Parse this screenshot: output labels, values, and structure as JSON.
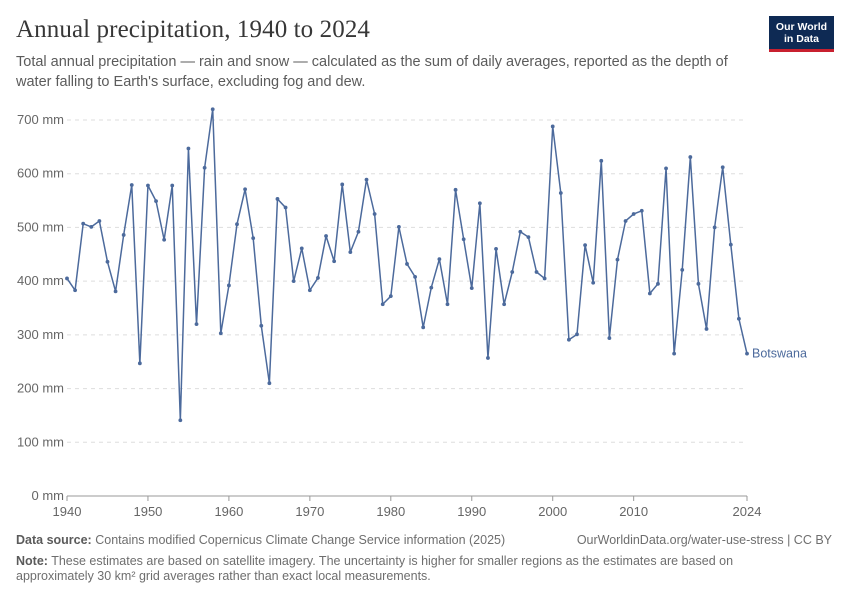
{
  "header": {
    "title": "Annual precipitation, 1940 to 2024",
    "subtitle": "Total annual precipitation — rain and snow — calculated as the sum of daily averages, reported as the depth of water falling to Earth's surface, excluding fog and dew."
  },
  "logo": {
    "line1": "Our World",
    "line2": "in Data"
  },
  "footer": {
    "source_label": "Data source:",
    "source_text": "Contains modified Copernicus Climate Change Service information (2025)",
    "url_text": "OurWorldinData.org/water-use-stress | CC BY",
    "note_label": "Note:",
    "note_text": "These estimates are based on satellite imagery. The uncertainty is higher for smaller regions as the estimates are based on approximately 30 km² grid averages rather than exact local measurements."
  },
  "colors": {
    "series": "#4c6a9c",
    "grid": "#dddddd",
    "axis": "#5b5b5b"
  },
  "chart_data": {
    "type": "line",
    "title": "Annual precipitation, 1940 to 2024",
    "xlabel": "",
    "ylabel": "",
    "xlim": [
      1940,
      2024
    ],
    "ylim": [
      0,
      720
    ],
    "y_ticks": [
      0,
      100,
      200,
      300,
      400,
      500,
      600,
      700
    ],
    "y_tick_labels": [
      "0 mm",
      "100 mm",
      "200 mm",
      "300 mm",
      "400 mm",
      "500 mm",
      "600 mm",
      "700 mm"
    ],
    "x_ticks": [
      1940,
      1950,
      1960,
      1970,
      1980,
      1990,
      2000,
      2024
    ],
    "x_tick_labels": [
      "1940",
      "1950",
      "1960",
      "1970",
      "1980",
      "1990",
      "2000",
      "2024"
    ],
    "extra_x_ticks": [
      2010
    ],
    "extra_x_tick_labels": [
      "2010"
    ],
    "grid": true,
    "legend": "end-label",
    "series": [
      {
        "name": "Botswana",
        "x": [
          1940,
          1941,
          1942,
          1943,
          1944,
          1945,
          1946,
          1947,
          1948,
          1949,
          1950,
          1951,
          1952,
          1953,
          1954,
          1955,
          1956,
          1957,
          1958,
          1959,
          1960,
          1961,
          1962,
          1963,
          1964,
          1965,
          1966,
          1967,
          1968,
          1969,
          1970,
          1971,
          1972,
          1973,
          1974,
          1975,
          1976,
          1977,
          1978,
          1979,
          1980,
          1981,
          1982,
          1983,
          1984,
          1985,
          1986,
          1987,
          1988,
          1989,
          1990,
          1991,
          1992,
          1993,
          1994,
          1995,
          1996,
          1997,
          1998,
          1999,
          2000,
          2001,
          2002,
          2003,
          2004,
          2005,
          2006,
          2007,
          2008,
          2009,
          2010,
          2011,
          2012,
          2013,
          2014,
          2015,
          2016,
          2017,
          2018,
          2019,
          2020,
          2021,
          2022,
          2023,
          2024
        ],
        "y": [
          405,
          383,
          507,
          501,
          512,
          436,
          381,
          486,
          579,
          247,
          578,
          549,
          477,
          578,
          141,
          647,
          320,
          611,
          720,
          303,
          392,
          506,
          571,
          480,
          317,
          210,
          553,
          537,
          400,
          461,
          383,
          406,
          484,
          437,
          580,
          454,
          492,
          589,
          525,
          357,
          372,
          501,
          432,
          408,
          314,
          388,
          441,
          357,
          570,
          478,
          387,
          545,
          257,
          460,
          357,
          417,
          492,
          482,
          417,
          405,
          688,
          564,
          291,
          301,
          467,
          397,
          624,
          294,
          440,
          512,
          525,
          531,
          377,
          395,
          610,
          265,
          421,
          631,
          395,
          311,
          500,
          612,
          468,
          330,
          265
        ]
      }
    ]
  }
}
